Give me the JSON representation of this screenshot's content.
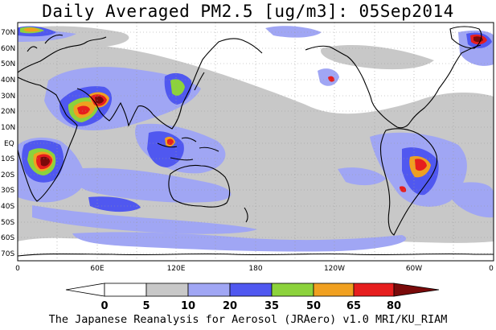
{
  "title": "Daily Averaged PM2.5 [ug/m3]: 05Sep2014",
  "footer": "The Japanese Reanalysis for Aerosol (JRAero) v1.0 MRI/KU_RIAM",
  "lat_labels": [
    "70N",
    "60N",
    "50N",
    "40N",
    "30N",
    "20N",
    "10N",
    "EQ",
    "10S",
    "20S",
    "30S",
    "40S",
    "50S",
    "60S",
    "70S"
  ],
  "lon_labels": [
    "0",
    "60E",
    "120E",
    "180",
    "120W",
    "60W",
    "0"
  ],
  "colorbar": {
    "labels": [
      "0",
      "5",
      "10",
      "20",
      "35",
      "50",
      "65",
      "80"
    ],
    "colors": [
      "#ffffff",
      "#c8c8c8",
      "#a0a6f4",
      "#5058f0",
      "#8cd23c",
      "#f0a020",
      "#e61e1e",
      "#7a0a0a"
    ]
  },
  "palette": {
    "light_gray": "#c8c8c8",
    "light_blue": "#a0a6f4",
    "blue": "#5058f0",
    "green": "#8cd23c",
    "orange": "#f0a020",
    "red": "#e61e1e",
    "dark_red": "#7a0a0a",
    "coast": "#000000",
    "grid": "#999999"
  }
}
